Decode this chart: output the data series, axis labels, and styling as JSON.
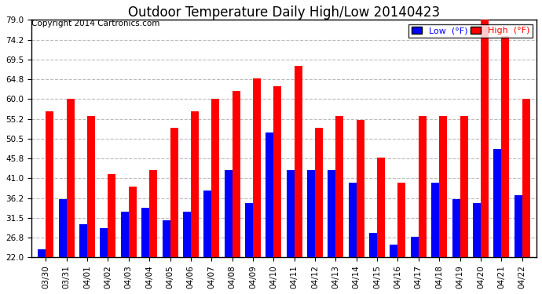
{
  "title": "Outdoor Temperature Daily High/Low 20140423",
  "copyright": "Copyright 2014 Cartronics.com",
  "legend_low": "Low  (°F)",
  "legend_high": "High  (°F)",
  "dates": [
    "03/30",
    "03/31",
    "04/01",
    "04/02",
    "04/03",
    "04/04",
    "04/05",
    "04/06",
    "04/07",
    "04/08",
    "04/09",
    "04/10",
    "04/11",
    "04/12",
    "04/13",
    "04/14",
    "04/15",
    "04/16",
    "04/17",
    "04/18",
    "04/19",
    "04/20",
    "04/21",
    "04/22"
  ],
  "lows": [
    24,
    36,
    30,
    29,
    33,
    34,
    31,
    33,
    38,
    43,
    35,
    52,
    43,
    43,
    43,
    40,
    28,
    25,
    27,
    40,
    36,
    35,
    48,
    37
  ],
  "highs": [
    57,
    60,
    56,
    42,
    39,
    43,
    53,
    57,
    60,
    62,
    65,
    63,
    68,
    53,
    56,
    55,
    46,
    40,
    56,
    56,
    56,
    79,
    75,
    60
  ],
  "ylim_min": 22.0,
  "ylim_max": 79.0,
  "yticks": [
    22.0,
    26.8,
    31.5,
    36.2,
    41.0,
    45.8,
    50.5,
    55.2,
    60.0,
    64.8,
    69.5,
    74.2,
    79.0
  ],
  "low_color": "#0000ff",
  "high_color": "#ff0000",
  "bg_color": "#ffffff",
  "grid_color": "#bbbbbb",
  "title_fontsize": 12,
  "copyright_fontsize": 7.5,
  "bar_width": 0.38
}
